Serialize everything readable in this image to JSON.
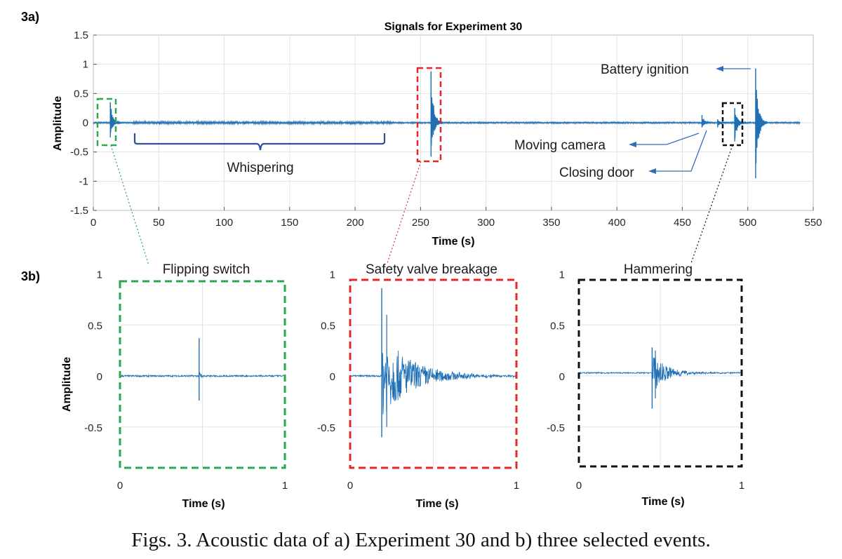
{
  "panel_a_label": "3a)",
  "panel_b_label": "3b)",
  "caption": "Figs. 3. Acoustic data of a) Experiment 30 and b) three selected events.",
  "colors": {
    "signal": "#1f6fb5",
    "green_box": "#2aa84a",
    "red_box": "#e8262a",
    "black_box": "#111111",
    "annotation": "#2f6fb8",
    "grid": "#e3e3e3"
  },
  "annotations": {
    "whispering": "Whispering",
    "battery_ignition": "Battery ignition",
    "moving_camera": "Moving camera",
    "closing_door": "Closing door"
  },
  "chart_data": [
    {
      "type": "line",
      "title": "Signals for Experiment 30",
      "xlabel": "Time (s)",
      "ylabel": "Amplitude",
      "xlim": [
        0,
        550
      ],
      "ylim": [
        -1.5,
        1.5
      ],
      "xticks": [
        "0",
        "50",
        "100",
        "150",
        "200",
        "250",
        "300",
        "350",
        "400",
        "450",
        "500",
        "550"
      ],
      "yticks": [
        "1.5",
        "1",
        "0.5",
        "0",
        "-0.5",
        "-1",
        "-1.5"
      ],
      "grid": true,
      "series": [
        {
          "events": [
            {
              "t": 13,
              "peak": 0.35,
              "trough": -0.25
            },
            {
              "t": 258,
              "peak": 0.88,
              "trough": -0.58
            },
            {
              "t": 465,
              "peak": 0.13,
              "trough": -0.08
            },
            {
              "t": 477,
              "peak": 0.06,
              "trough": -0.08
            },
            {
              "t": 490,
              "peak": 0.25,
              "trough": -0.32
            },
            {
              "t": 506,
              "peak": 0.93,
              "trough": -0.95
            }
          ]
        }
      ]
    },
    {
      "type": "line",
      "title": "Flipping switch",
      "xlabel": "Time (s)",
      "ylabel": "Amplitude",
      "xlim": [
        0,
        1
      ],
      "ylim": [
        -0.9,
        1.1
      ],
      "xticks": [
        "0",
        "1"
      ],
      "yticks": [
        "1",
        "0.5",
        "0",
        "-0.5"
      ],
      "series": [
        {
          "event_t": 0.48,
          "peak": 0.37,
          "trough": -0.24,
          "baseline": 0
        }
      ]
    },
    {
      "type": "line",
      "title": "Safety valve breakage",
      "xlabel": "Time (s)",
      "ylabel": "",
      "xlim": [
        0,
        1
      ],
      "ylim": [
        -0.9,
        1.1
      ],
      "xticks": [
        "0",
        "1"
      ],
      "yticks": [
        "1",
        "0.5",
        "0",
        "-0.5"
      ],
      "series": [
        {
          "event_t": 0.19,
          "peak": 0.86,
          "trough": -0.6,
          "baseline": 0
        }
      ]
    },
    {
      "type": "line",
      "title": "Hammering",
      "xlabel": "Time (s)",
      "ylabel": "",
      "xlim": [
        0,
        1
      ],
      "ylim": [
        -0.9,
        1.1
      ],
      "xticks": [
        "0",
        "1"
      ],
      "yticks": [
        "1",
        "0.5",
        "0",
        "-0.5"
      ],
      "series": [
        {
          "event_t": 0.45,
          "peak": 0.28,
          "trough": -0.32,
          "baseline": 0.03
        }
      ]
    }
  ]
}
